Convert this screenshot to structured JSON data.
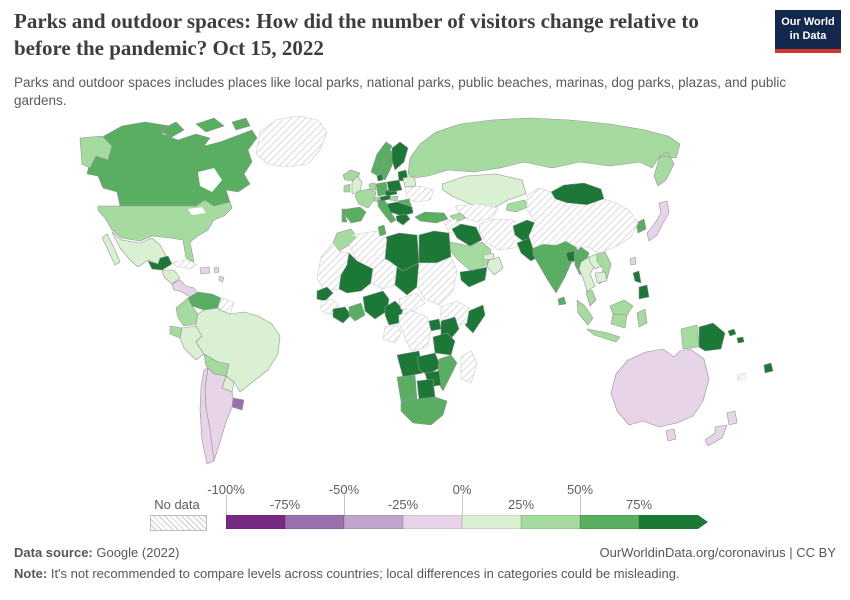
{
  "header": {
    "title": "Parks and outdoor spaces: How did the number of visitors change relative to before the pandemic? Oct 15, 2022",
    "subtitle": "Parks and outdoor spaces includes places like local parks, national parks, public beaches, marinas, dog parks, plazas, and public gardens.",
    "logo": {
      "line1": "Our World",
      "line2": "in Data",
      "bg_color": "#12294d",
      "accent_color": "#d1352c"
    }
  },
  "legend": {
    "no_data_label": "No data",
    "boundary_labels": [
      "-100%",
      "-75%",
      "-50%",
      "-25%",
      "0%",
      "25%",
      "50%",
      "75%"
    ]
  },
  "footer": {
    "source_label": "Data source:",
    "source_value": " Google (2022)",
    "link_text": "OurWorldinData.org/coronavirus | CC BY",
    "note_label": "Note:",
    "note_text": " It's not recommended to compare levels across countries; local differences in categories could be misleading."
  },
  "chart_data": {
    "type": "choropleth",
    "title": "Parks and outdoor spaces: How did the number of visitors change relative to before the pandemic?",
    "date": "Oct 15, 2022",
    "metric": "Change in visitors to parks and outdoor spaces relative to pre-pandemic baseline (%)",
    "source": "Google (2022)",
    "color_scale": {
      "palette": "PRGn purple-green diverging",
      "domain": [
        -100,
        100
      ],
      "bin_size": 25,
      "bin_colors": [
        "#762a83",
        "#9970ab",
        "#c2a5cf",
        "#e7d4e8",
        "#d9f0d3",
        "#a6dba0",
        "#5aae61",
        "#1b7837"
      ],
      "bin_labels": [
        "-100% to -75%",
        "-75% to -50%",
        "-50% to -25%",
        "-25% to 0%",
        "0% to 25%",
        "25% to 50%",
        "50% to 75%",
        "75% and higher"
      ],
      "no_data_style": "white with gray diagonal hatching"
    },
    "regions": [
      {
        "id": "alaska",
        "label": "United States (Alaska)",
        "bin": 5
      },
      {
        "id": "canada",
        "label": "Canada",
        "bin": 6
      },
      {
        "id": "greenland",
        "label": "Greenland",
        "bin": -1
      },
      {
        "id": "usa",
        "label": "United States",
        "bin": 5
      },
      {
        "id": "mexico",
        "label": "Mexico",
        "bin": 4
      },
      {
        "id": "guatemala",
        "label": "Guatemala",
        "bin": 7
      },
      {
        "id": "honduras-nicaragua",
        "label": "Honduras / Nicaragua",
        "bin": 4
      },
      {
        "id": "costa-rica-panama",
        "label": "Costa Rica / Panama",
        "bin": 3
      },
      {
        "id": "cuba",
        "label": "Cuba",
        "bin": -1
      },
      {
        "id": "hispaniola",
        "label": "Haiti / Dominican Republic",
        "bin": 3
      },
      {
        "id": "lesser-antilles",
        "label": "Lesser Antilles",
        "bin": 3
      },
      {
        "id": "venezuela",
        "label": "Venezuela",
        "bin": 6
      },
      {
        "id": "guyanas",
        "label": "Guyana / Suriname",
        "bin": -1
      },
      {
        "id": "colombia",
        "label": "Colombia",
        "bin": 5
      },
      {
        "id": "ecuador",
        "label": "Ecuador",
        "bin": 5
      },
      {
        "id": "peru",
        "label": "Peru",
        "bin": 4
      },
      {
        "id": "brazil",
        "label": "Brazil",
        "bin": 4
      },
      {
        "id": "bolivia",
        "label": "Bolivia",
        "bin": 5
      },
      {
        "id": "paraguay",
        "label": "Paraguay",
        "bin": 4
      },
      {
        "id": "uruguay",
        "label": "Uruguay",
        "bin": 1
      },
      {
        "id": "argentina",
        "label": "Argentina",
        "bin": 3
      },
      {
        "id": "chile",
        "label": "Chile",
        "bin": 3
      },
      {
        "id": "iceland",
        "label": "Iceland",
        "bin": 5
      },
      {
        "id": "norway",
        "label": "Norway",
        "bin": 6
      },
      {
        "id": "sweden",
        "label": "Sweden",
        "bin": 6
      },
      {
        "id": "finland",
        "label": "Finland",
        "bin": 7
      },
      {
        "id": "baltics",
        "label": "Baltic states",
        "bin": 7
      },
      {
        "id": "denmark",
        "label": "Denmark",
        "bin": 7
      },
      {
        "id": "uk",
        "label": "United Kingdom",
        "bin": 4
      },
      {
        "id": "ireland",
        "label": "Ireland",
        "bin": 5
      },
      {
        "id": "germany",
        "label": "Germany",
        "bin": 6
      },
      {
        "id": "benelux",
        "label": "Netherlands / Belgium",
        "bin": 5
      },
      {
        "id": "france",
        "label": "France",
        "bin": 5
      },
      {
        "id": "switzerland",
        "label": "Switzerland",
        "bin": 5
      },
      {
        "id": "spain",
        "label": "Spain",
        "bin": 6
      },
      {
        "id": "portugal",
        "label": "Portugal",
        "bin": 6
      },
      {
        "id": "italy",
        "label": "Italy",
        "bin": 6
      },
      {
        "id": "austria",
        "label": "Austria",
        "bin": 7
      },
      {
        "id": "czech-slovakia",
        "label": "Czechia / Slovakia",
        "bin": 7
      },
      {
        "id": "poland",
        "label": "Poland",
        "bin": 7
      },
      {
        "id": "belarus",
        "label": "Belarus",
        "bin": 4
      },
      {
        "id": "ukraine",
        "label": "Ukraine",
        "bin": -1
      },
      {
        "id": "hungary",
        "label": "Hungary",
        "bin": 5
      },
      {
        "id": "romania",
        "label": "Romania",
        "bin": 6
      },
      {
        "id": "balkans",
        "label": "Western Balkans / Bulgaria",
        "bin": 7
      },
      {
        "id": "greece",
        "label": "Greece",
        "bin": 7
      },
      {
        "id": "turkey",
        "label": "Turkey",
        "bin": 6
      },
      {
        "id": "russia",
        "label": "Russia",
        "bin": 5
      },
      {
        "id": "kazakhstan",
        "label": "Kazakhstan",
        "bin": 4
      },
      {
        "id": "uzbek-turkmen",
        "label": "Uzbekistan / Turkmenistan",
        "bin": -1
      },
      {
        "id": "kyrgyz-tajik",
        "label": "Kyrgyzstan / Tajikistan",
        "bin": 5
      },
      {
        "id": "caucasus",
        "label": "Georgia / Azerbaijan",
        "bin": 5
      },
      {
        "id": "syria-levant",
        "label": "Syria / Jordan",
        "bin": -1
      },
      {
        "id": "iraq",
        "label": "Iraq",
        "bin": 7
      },
      {
        "id": "saudi-arabia",
        "label": "Saudi Arabia",
        "bin": 5
      },
      {
        "id": "yemen",
        "label": "Yemen",
        "bin": 7
      },
      {
        "id": "oman",
        "label": "Oman",
        "bin": 4
      },
      {
        "id": "uae",
        "label": "United Arab Emirates",
        "bin": 4
      },
      {
        "id": "iran",
        "label": "Iran",
        "bin": -1
      },
      {
        "id": "afghanistan",
        "label": "Afghanistan",
        "bin": 7
      },
      {
        "id": "pakistan",
        "label": "Pakistan",
        "bin": 7
      },
      {
        "id": "india",
        "label": "India",
        "bin": 6
      },
      {
        "id": "sri-lanka",
        "label": "Sri Lanka",
        "bin": 6
      },
      {
        "id": "bangladesh",
        "label": "Bangladesh",
        "bin": 7
      },
      {
        "id": "myanmar",
        "label": "Myanmar",
        "bin": 6
      },
      {
        "id": "thailand",
        "label": "Thailand",
        "bin": 4
      },
      {
        "id": "laos",
        "label": "Laos",
        "bin": 4
      },
      {
        "id": "vietnam",
        "label": "Vietnam",
        "bin": 5
      },
      {
        "id": "cambodia",
        "label": "Cambodia",
        "bin": 4
      },
      {
        "id": "malaysia",
        "label": "Malaysia",
        "bin": 5
      },
      {
        "id": "indonesia",
        "label": "Indonesia",
        "bin": 5
      },
      {
        "id": "png",
        "label": "Papua New Guinea",
        "bin": 7
      },
      {
        "id": "solomon-islands",
        "label": "Solomon Islands",
        "bin": 7
      },
      {
        "id": "philippines",
        "label": "Philippines",
        "bin": 7
      },
      {
        "id": "taiwan",
        "label": "Taiwan",
        "bin": 3
      },
      {
        "id": "south-korea",
        "label": "South Korea",
        "bin": 6
      },
      {
        "id": "japan",
        "label": "Japan",
        "bin": 3
      },
      {
        "id": "mongolia",
        "label": "Mongolia",
        "bin": 7
      },
      {
        "id": "china",
        "label": "China",
        "bin": -1
      },
      {
        "id": "australia",
        "label": "Australia",
        "bin": 3
      },
      {
        "id": "new-zealand",
        "label": "New Zealand",
        "bin": 3
      },
      {
        "id": "fiji",
        "label": "Fiji",
        "bin": 7
      },
      {
        "id": "new-caledonia",
        "label": "New Caledonia",
        "bin": -1
      },
      {
        "id": "morocco",
        "label": "Morocco",
        "bin": 5
      },
      {
        "id": "mauritania",
        "label": "Western Sahara / Mauritania",
        "bin": -1
      },
      {
        "id": "algeria",
        "label": "Algeria",
        "bin": -1
      },
      {
        "id": "tunisia",
        "label": "Tunisia",
        "bin": 6
      },
      {
        "id": "libya",
        "label": "Libya",
        "bin": 7
      },
      {
        "id": "egypt",
        "label": "Egypt",
        "bin": 7
      },
      {
        "id": "mali",
        "label": "Mali / Burkina Faso",
        "bin": 7
      },
      {
        "id": "niger",
        "label": "Niger",
        "bin": -1
      },
      {
        "id": "chad",
        "label": "Chad",
        "bin": 7
      },
      {
        "id": "sudan",
        "label": "Sudan",
        "bin": -1
      },
      {
        "id": "senegal",
        "label": "Senegal",
        "bin": 7
      },
      {
        "id": "guinea",
        "label": "Guinea",
        "bin": -1
      },
      {
        "id": "ivory-coast",
        "label": "Côte d'Ivoire",
        "bin": 7
      },
      {
        "id": "ghana",
        "label": "Ghana",
        "bin": 6
      },
      {
        "id": "nigeria",
        "label": "Nigeria",
        "bin": 7
      },
      {
        "id": "cameroon",
        "label": "Cameroon",
        "bin": 7
      },
      {
        "id": "gabon-congo",
        "label": "Gabon / Congo",
        "bin": -1
      },
      {
        "id": "central-african-republic",
        "label": "Central African Republic",
        "bin": -1
      },
      {
        "id": "ethiopia",
        "label": "Ethiopia",
        "bin": -1
      },
      {
        "id": "somalia",
        "label": "Somalia",
        "bin": 7
      },
      {
        "id": "uganda",
        "label": "Uganda",
        "bin": 7
      },
      {
        "id": "kenya",
        "label": "Kenya",
        "bin": 7
      },
      {
        "id": "drc",
        "label": "Democratic Republic of Congo",
        "bin": -1
      },
      {
        "id": "tanzania",
        "label": "Tanzania",
        "bin": 7
      },
      {
        "id": "angola",
        "label": "Angola",
        "bin": 7
      },
      {
        "id": "zambia",
        "label": "Zambia",
        "bin": 7
      },
      {
        "id": "mozambique",
        "label": "Mozambique",
        "bin": 6
      },
      {
        "id": "zimbabwe",
        "label": "Zimbabwe",
        "bin": 7
      },
      {
        "id": "namibia",
        "label": "Namibia",
        "bin": 6
      },
      {
        "id": "botswana",
        "label": "Botswana",
        "bin": 7
      },
      {
        "id": "south-africa",
        "label": "South Africa",
        "bin": 6
      },
      {
        "id": "madagascar",
        "label": "Madagascar",
        "bin": -1
      }
    ]
  }
}
